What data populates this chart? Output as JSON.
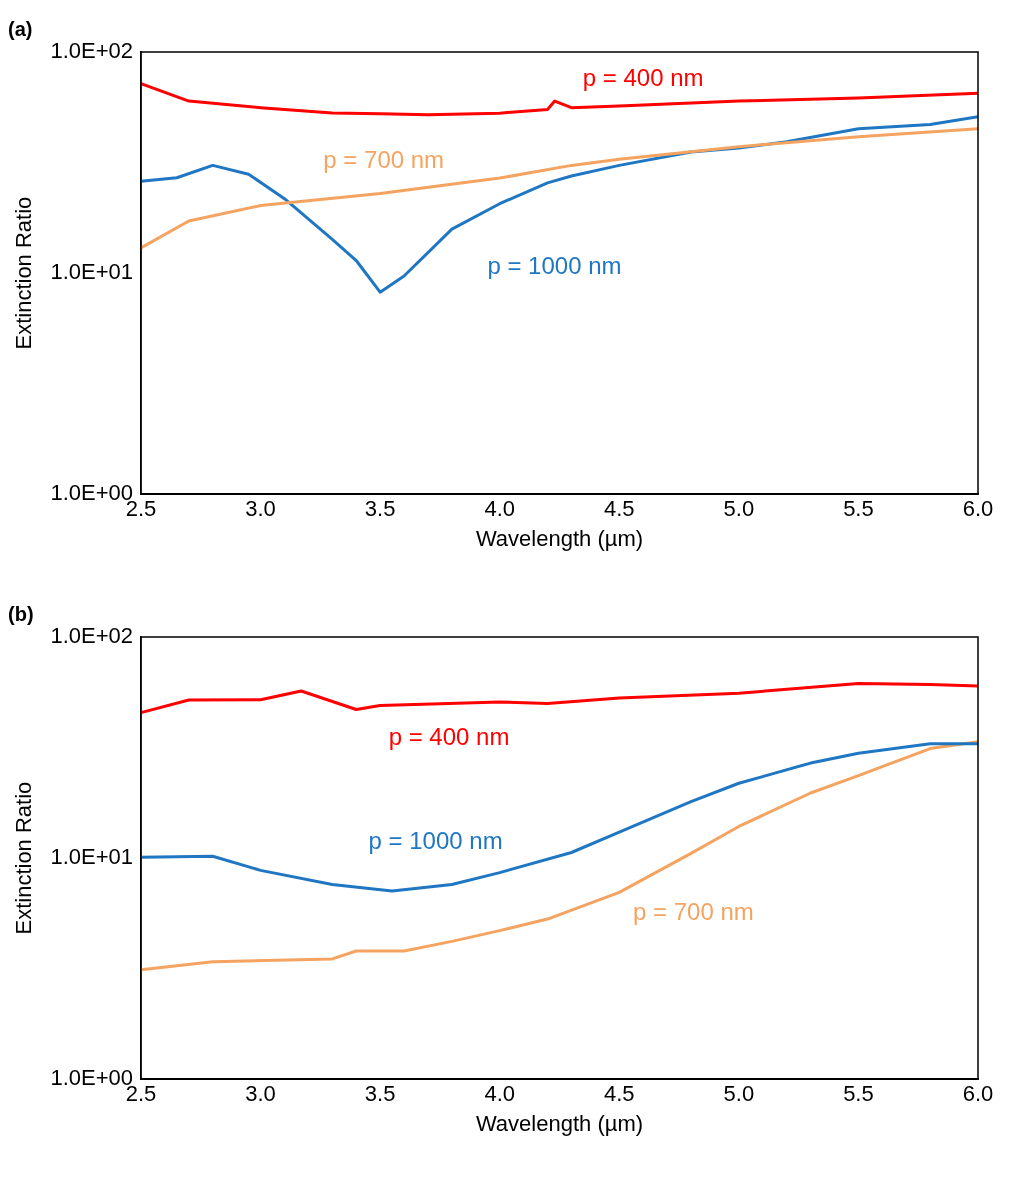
{
  "chart_data": [
    {
      "type": "line",
      "title": "(a)",
      "xlabel": "Wavelength (µm)",
      "ylabel": "Extinction Ratio",
      "log": "y",
      "grid": false,
      "legend": false,
      "marker": "none",
      "line_style": "solid",
      "xlim": [
        2.5,
        6.0
      ],
      "ylim": [
        1,
        100
      ],
      "xticks": [
        2.5,
        {
          "value": 3,
          "label": "3.0"
        },
        3.5,
        {
          "value": 4,
          "label": "4.0"
        },
        4.5,
        {
          "value": 5,
          "label": "5.0"
        },
        5.5,
        {
          "value": 6,
          "label": "6.0"
        }
      ],
      "yticks": [
        {
          "value": 1,
          "label": "1.0E+00"
        },
        {
          "value": 10,
          "label": "1.0E+01"
        },
        {
          "value": 100,
          "label": "1.0E+02"
        }
      ],
      "series": [
        {
          "name": "p = 400 nm",
          "color": "#ff0000",
          "x": [
            2.5,
            2.7,
            3.0,
            3.3,
            3.5,
            3.7,
            4.0,
            4.2,
            4.23,
            4.3,
            4.5,
            5.0,
            5.5,
            6.0
          ],
          "values": [
            72,
            60,
            56,
            53,
            52.5,
            52,
            52.9,
            55,
            60,
            56,
            57,
            60,
            62,
            65
          ]
        },
        {
          "name": "p = 700 nm",
          "color": "#f4a460",
          "x": [
            2.5,
            2.7,
            3.0,
            3.5,
            4.0,
            4.3,
            4.5,
            5.0,
            5.5,
            6.0
          ],
          "values": [
            13,
            17.2,
            20.2,
            22.9,
            26.9,
            30.7,
            32.7,
            37.3,
            41.4,
            45
          ]
        },
        {
          "name": "p = 1000 nm",
          "color": "#1f77c4",
          "x": [
            2.5,
            2.65,
            2.8,
            2.95,
            3.1,
            3.3,
            3.4,
            3.5,
            3.6,
            3.8,
            4.0,
            4.2,
            4.3,
            4.5,
            4.8,
            5.0,
            5.2,
            5.5,
            5.8,
            6.0
          ],
          "values": [
            26,
            27,
            30.7,
            28,
            21.7,
            14.2,
            11.4,
            8.2,
            9.7,
            15.8,
            20.6,
            25.6,
            27.5,
            30.7,
            35.3,
            36.8,
            39.3,
            45,
            47,
            51
          ]
        }
      ]
    },
    {
      "type": "line",
      "title": "(b)",
      "xlabel": "Wavelength (µm)",
      "ylabel": "Extinction Ratio",
      "log": "y",
      "grid": false,
      "legend": false,
      "marker": "none",
      "line_style": "solid",
      "xlim": [
        2.5,
        6.0
      ],
      "ylim": [
        1,
        100
      ],
      "xticks": [
        2.5,
        {
          "value": 3,
          "label": "3.0"
        },
        3.5,
        {
          "value": 4,
          "label": "4.0"
        },
        4.5,
        {
          "value": 5,
          "label": "5.0"
        },
        5.5,
        {
          "value": 6,
          "label": "6.0"
        }
      ],
      "yticks": [
        {
          "value": 1,
          "label": "1.0E+00"
        },
        {
          "value": 10,
          "label": "1.0E+01"
        },
        {
          "value": 100,
          "label": "1.0E+02"
        }
      ],
      "series": [
        {
          "name": "p = 400 nm",
          "color": "#ff0000",
          "x": [
            2.5,
            2.7,
            3.0,
            3.17,
            3.4,
            3.5,
            4.0,
            4.2,
            4.5,
            5.0,
            5.5,
            5.8,
            6.0
          ],
          "values": [
            45.5,
            51.9,
            52,
            57,
            47,
            49,
            50.8,
            50,
            53,
            55.7,
            61.6,
            61,
            60
          ]
        },
        {
          "name": "p = 1000 nm",
          "color": "#1f77c4",
          "x": [
            2.5,
            2.8,
            3.0,
            3.3,
            3.55,
            3.8,
            4.0,
            4.3,
            4.5,
            4.8,
            5.0,
            5.3,
            5.5,
            5.8,
            6.0
          ],
          "values": [
            10.1,
            10.2,
            8.8,
            7.6,
            7.1,
            7.6,
            8.6,
            10.6,
            13.1,
            18,
            21.8,
            26.9,
            29.8,
            32.9,
            32.9
          ]
        },
        {
          "name": "p = 700 nm",
          "color": "#f4a460",
          "x": [
            2.5,
            2.8,
            3.3,
            3.4,
            3.6,
            3.8,
            4.0,
            4.2,
            4.5,
            4.8,
            5.0,
            5.3,
            5.5,
            5.8,
            6.0
          ],
          "values": [
            3.13,
            3.4,
            3.5,
            3.8,
            3.8,
            4.2,
            4.7,
            5.3,
            7,
            10.5,
            13.9,
            19.7,
            23.6,
            31.3,
            33.6
          ]
        }
      ]
    }
  ]
}
